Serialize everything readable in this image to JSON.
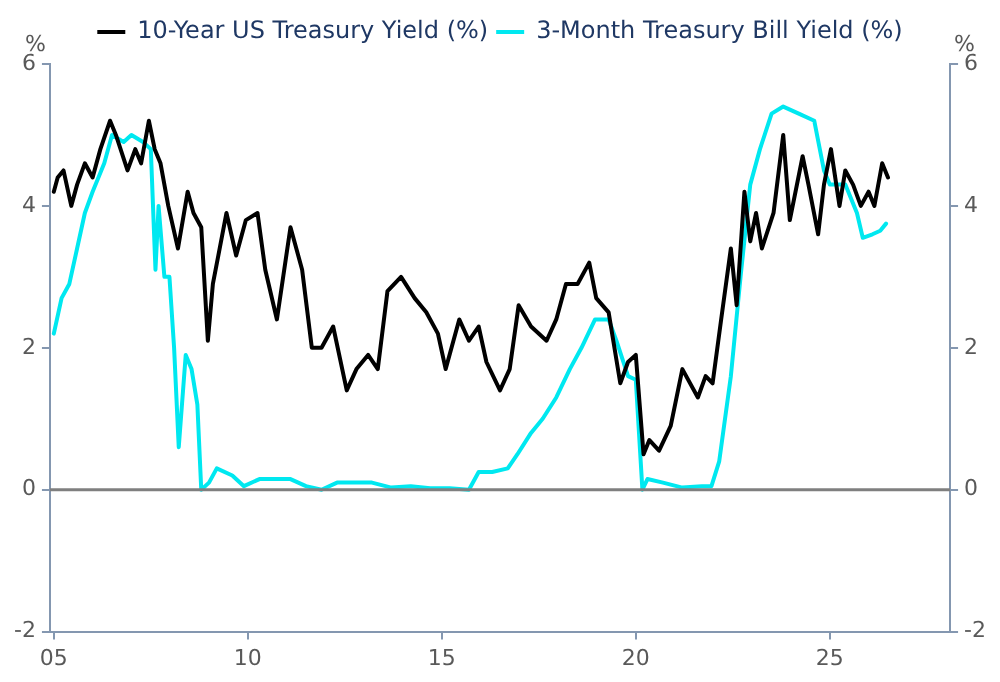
{
  "chart_data": {
    "type": "line",
    "ylabel": "%",
    "y2label": "%",
    "xlim": [
      2004.9,
      2028.1
    ],
    "xticks": [
      {
        "value": 2005,
        "label": "05"
      },
      {
        "value": 2010,
        "label": "10"
      },
      {
        "value": 2015,
        "label": "15"
      },
      {
        "value": 2020,
        "label": "20"
      },
      {
        "value": 2025,
        "label": "25"
      }
    ],
    "ylim": [
      -2,
      6
    ],
    "yticks": [
      -2,
      0,
      2,
      4,
      6
    ],
    "y2lim": [
      -2,
      6
    ],
    "y2ticks": [
      -2,
      0,
      2,
      4,
      6
    ],
    "legend": "top",
    "marker": "none",
    "line_style": "solid",
    "ref_lines": [
      {
        "axis": "y",
        "value": 0,
        "color": "#7f7f7f"
      }
    ],
    "series": [
      {
        "name": "10-Year US Treasury Yield (%)",
        "color": "#000000",
        "x": [
          2005.0,
          2005.1,
          2005.25,
          2005.45,
          2005.6,
          2005.8,
          2006.0,
          2006.2,
          2006.45,
          2006.6,
          2006.9,
          2007.1,
          2007.25,
          2007.45,
          2007.6,
          2007.75,
          2007.95,
          2008.2,
          2008.45,
          2008.6,
          2008.8,
          2008.97,
          2009.1,
          2009.45,
          2009.7,
          2009.95,
          2010.25,
          2010.45,
          2010.75,
          2011.1,
          2011.4,
          2011.65,
          2011.9,
          2012.2,
          2012.55,
          2012.8,
          2013.1,
          2013.35,
          2013.6,
          2013.95,
          2014.3,
          2014.6,
          2014.9,
          2015.1,
          2015.45,
          2015.7,
          2015.95,
          2016.15,
          2016.5,
          2016.75,
          2016.98,
          2017.3,
          2017.7,
          2017.95,
          2018.2,
          2018.5,
          2018.8,
          2018.98,
          2019.3,
          2019.6,
          2019.8,
          2020.0,
          2020.2,
          2020.35,
          2020.6,
          2020.9,
          2021.2,
          2021.6,
          2021.8,
          2021.98,
          2022.2,
          2022.45,
          2022.6,
          2022.8,
          2022.95,
          2023.1,
          2023.25,
          2023.55,
          2023.8,
          2023.97,
          2024.3,
          2024.45,
          2024.7,
          2024.85,
          2025.03,
          2025.25,
          2025.4,
          2025.6,
          2025.8,
          2026.0,
          2026.15,
          2026.35,
          2026.5
        ],
        "values": [
          4.2,
          4.4,
          4.5,
          4.0,
          4.3,
          4.6,
          4.4,
          4.8,
          5.2,
          5.0,
          4.5,
          4.8,
          4.6,
          5.2,
          4.8,
          4.6,
          4.0,
          3.4,
          4.2,
          3.9,
          3.7,
          2.1,
          2.9,
          3.9,
          3.3,
          3.8,
          3.9,
          3.1,
          2.4,
          3.7,
          3.1,
          2.0,
          2.0,
          2.3,
          1.4,
          1.7,
          1.9,
          1.7,
          2.8,
          3.0,
          2.7,
          2.5,
          2.2,
          1.7,
          2.4,
          2.1,
          2.3,
          1.8,
          1.4,
          1.7,
          2.6,
          2.3,
          2.1,
          2.4,
          2.9,
          2.9,
          3.2,
          2.7,
          2.5,
          1.5,
          1.8,
          1.9,
          0.5,
          0.7,
          0.55,
          0.9,
          1.7,
          1.3,
          1.6,
          1.5,
          2.4,
          3.4,
          2.6,
          4.2,
          3.5,
          3.9,
          3.4,
          3.9,
          5.0,
          3.8,
          4.7,
          4.3,
          3.6,
          4.3,
          4.8,
          4.0,
          4.5,
          4.3,
          4.0,
          4.2,
          4.0,
          4.6,
          4.4
        ]
      },
      {
        "name": "3-Month Treasury Bill Yield (%)",
        "color": "#00e8f0",
        "x": [
          2005.0,
          2005.2,
          2005.4,
          2005.6,
          2005.8,
          2006.0,
          2006.3,
          2006.5,
          2006.8,
          2007.0,
          2007.3,
          2007.5,
          2007.62,
          2007.7,
          2007.85,
          2007.98,
          2008.1,
          2008.22,
          2008.4,
          2008.55,
          2008.7,
          2008.8,
          2009.0,
          2009.2,
          2009.6,
          2009.9,
          2010.3,
          2010.7,
          2011.1,
          2011.5,
          2011.9,
          2012.3,
          2012.8,
          2013.2,
          2013.7,
          2014.2,
          2014.7,
          2015.2,
          2015.7,
          2015.95,
          2016.3,
          2016.7,
          2016.95,
          2017.3,
          2017.6,
          2017.95,
          2018.3,
          2018.6,
          2018.95,
          2019.3,
          2019.5,
          2019.8,
          2020.0,
          2020.17,
          2020.3,
          2020.7,
          2021.2,
          2021.7,
          2021.95,
          2022.15,
          2022.45,
          2022.7,
          2022.95,
          2023.2,
          2023.5,
          2023.8,
          2024.2,
          2024.6,
          2024.85,
          2025.0,
          2025.4,
          2025.7,
          2025.85,
          2026.1,
          2026.3,
          2026.45
        ],
        "values": [
          2.2,
          2.7,
          2.9,
          3.4,
          3.9,
          4.2,
          4.6,
          5.0,
          4.9,
          5.0,
          4.9,
          4.8,
          3.1,
          4.0,
          3.0,
          3.0,
          2.0,
          0.6,
          1.9,
          1.7,
          1.2,
          0.0,
          0.1,
          0.3,
          0.2,
          0.05,
          0.15,
          0.15,
          0.15,
          0.05,
          0.0,
          0.1,
          0.1,
          0.1,
          0.03,
          0.05,
          0.02,
          0.02,
          0.0,
          0.25,
          0.25,
          0.3,
          0.5,
          0.8,
          1.0,
          1.3,
          1.7,
          2.0,
          2.4,
          2.4,
          2.1,
          1.6,
          1.55,
          0.0,
          0.15,
          0.1,
          0.03,
          0.05,
          0.05,
          0.4,
          1.6,
          3.0,
          4.3,
          4.8,
          5.3,
          5.4,
          5.3,
          5.2,
          4.5,
          4.3,
          4.3,
          3.9,
          3.55,
          3.6,
          3.65,
          3.75
        ]
      }
    ]
  }
}
